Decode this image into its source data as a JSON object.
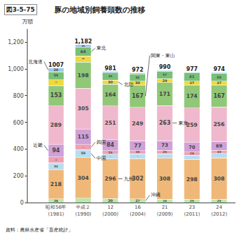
{
  "chart_data": {
    "type": "bar",
    "stacked": true,
    "title": "豚の地域別飼養頭数の推移",
    "title_label": "図3-5-75",
    "ylabel": "万頭",
    "source": "資料：農林水産省「畜産統計」",
    "categories": [
      "昭和56年\n(1981)",
      "平成２\n(1990)",
      "12\n(2000)",
      "16\n(2004)",
      "21\n(2009)",
      "23\n(2011)",
      "24\n(2012)"
    ],
    "series": [
      {
        "name": "沖縄",
        "color": "#b8e8b0",
        "values": [
          26,
          33,
          30,
          27,
          24,
          25,
          25
        ]
      },
      {
        "name": "九州",
        "color": "#f0b878",
        "values": [
          218,
          304,
          296,
          302,
          308,
          298,
          308
        ]
      },
      {
        "name": "中国",
        "color": "#b8ddf0",
        "values": [
          54,
          59,
          37,
          35,
          34,
          32,
          34
        ]
      },
      {
        "name": "四国",
        "color": "#f0a0b0",
        "values": [
          43,
          38,
          25,
          23,
          25,
          24,
          23
        ]
      },
      {
        "name": "近畿",
        "color": "#d0a0d8",
        "values": [
          94,
          115,
          84,
          77,
          73,
          70,
          69
        ]
      },
      {
        "name": "東海",
        "color": "#f0b8cc",
        "values": [
          289,
          305,
          251,
          249,
          263,
          259,
          256
        ]
      },
      {
        "name": "関東・東山",
        "color": "#90c878",
        "values": [
          153,
          198,
          164,
          167,
          171,
          174,
          167
        ]
      },
      {
        "name": "北陸",
        "color": "#f0d840",
        "values": [
          43,
          46,
          30,
          30,
          29,
          27,
          27
        ]
      },
      {
        "name": "東北",
        "color": "#78c078",
        "values": [
          59,
          64,
          55,
          54,
          57,
          61,
          59
        ]
      },
      {
        "name": "北海道",
        "color": "#a0c8e8",
        "values": [
          28,
          20,
          9,
          8,
          6,
          7,
          6
        ],
        "value_labels": [
          "28",
          "20",
          null,
          null,
          null,
          null,
          null
        ]
      }
    ],
    "totals": [
      1007,
      1182,
      981,
      972,
      990,
      977,
      974
    ],
    "total_labels": [
      "1007",
      "1,182",
      "981",
      "972",
      "990",
      "977",
      "974"
    ],
    "ylim": [
      0,
      1300
    ],
    "yticks": [
      0,
      200,
      400,
      600,
      800,
      {
        "value": 1000,
        "label": "1,000"
      },
      {
        "value": 1200,
        "label": "1,200"
      }
    ],
    "grid": false,
    "data_labels": true,
    "annotations": [
      {
        "text": "北海道",
        "series": "北海道",
        "category": "昭和56年\n(1981)"
      },
      {
        "text": "東北",
        "series": "東北",
        "category": "平成２\n(1990)"
      },
      {
        "text": "北陸",
        "series": "北陸",
        "category": "12\n(2000)"
      },
      {
        "text": "関東・東山",
        "series": "関東・東山",
        "category": "16\n(2004)"
      },
      {
        "text": "東海",
        "series": "東海",
        "category": "21\n(2009)"
      },
      {
        "text": "近畿",
        "series": "近畿",
        "category": "昭和56年\n(1981)"
      },
      {
        "text": "四国",
        "series": "四国",
        "category": "平成２\n(1990)"
      },
      {
        "text": "中国",
        "series": "中国",
        "category": "平成２\n(1990)"
      },
      {
        "text": "九州",
        "series": "九州",
        "category": "12\n(2000)"
      },
      {
        "text": "沖縄",
        "series": "沖縄",
        "category": "16\n(2004)"
      }
    ]
  }
}
